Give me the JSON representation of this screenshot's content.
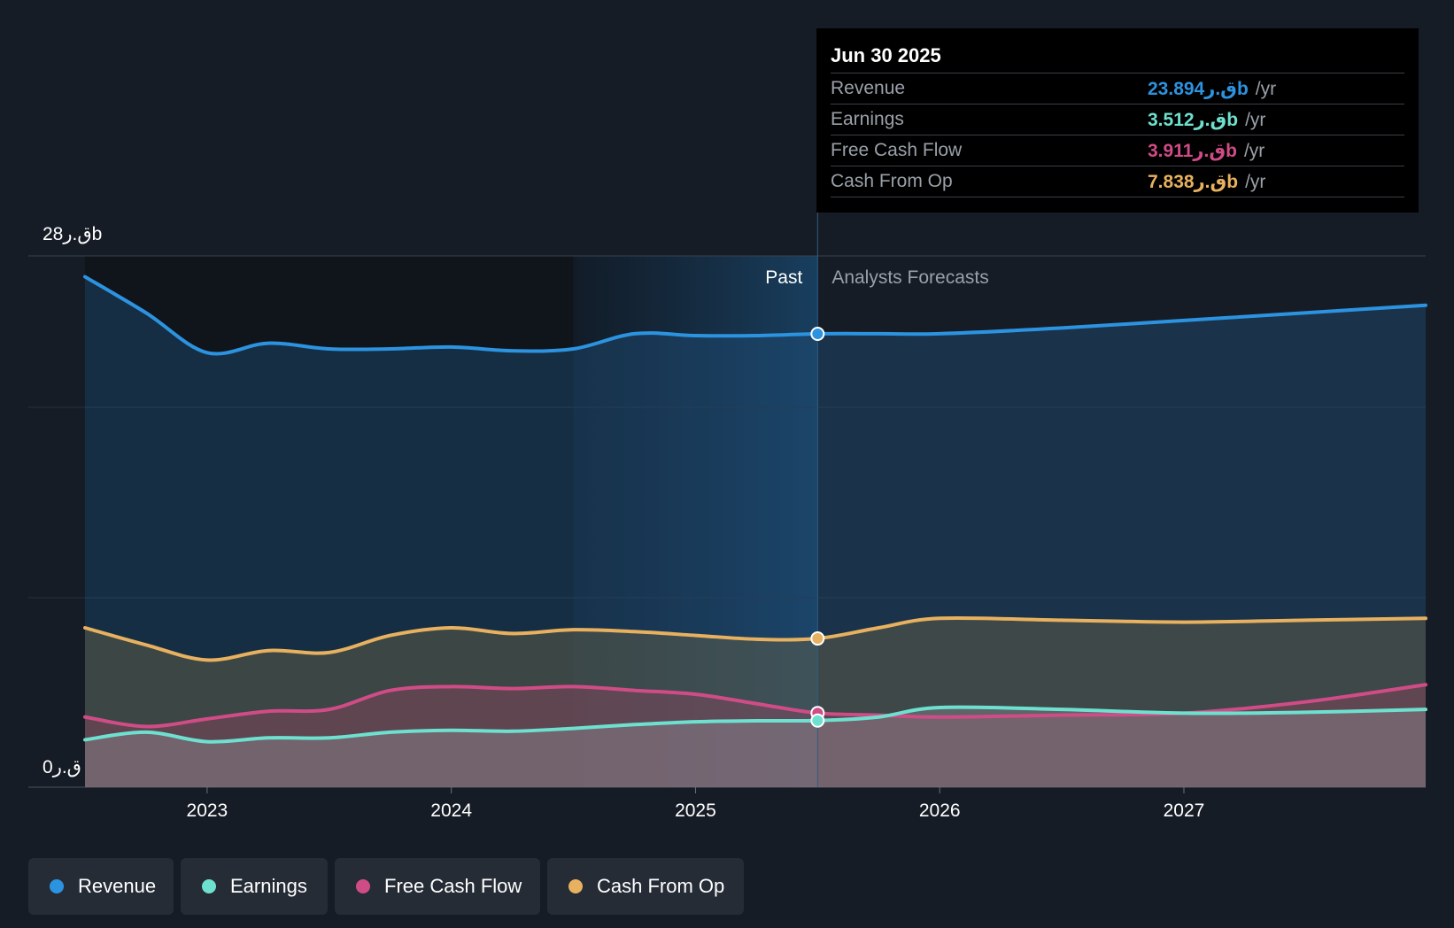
{
  "chart_data": {
    "type": "area",
    "title": "",
    "y_max_label": "28ق.رb",
    "y_min_label": "0ق.ر",
    "ylim": [
      0,
      28
    ],
    "xlim": [
      2022.5,
      2027.99
    ],
    "x_ticks": [
      {
        "value": 2023,
        "label": "2023"
      },
      {
        "value": 2024,
        "label": "2024"
      },
      {
        "value": 2025,
        "label": "2025"
      },
      {
        "value": 2026,
        "label": "2026"
      },
      {
        "value": 2027,
        "label": "2027"
      }
    ],
    "past_label": "Past",
    "forecast_label": "Analysts Forecasts",
    "past_end": 2025.5,
    "highlight_start": 2024.5,
    "series": [
      {
        "name": "Revenue",
        "color": "#2c93e0",
        "points": [
          [
            2022.5,
            26.9
          ],
          [
            2022.75,
            25
          ],
          [
            2023,
            22.9
          ],
          [
            2023.25,
            23.4
          ],
          [
            2023.5,
            23.1
          ],
          [
            2023.75,
            23.1
          ],
          [
            2024,
            23.2
          ],
          [
            2024.25,
            23
          ],
          [
            2024.5,
            23.1
          ],
          [
            2024.75,
            23.9
          ],
          [
            2025,
            23.8
          ],
          [
            2025.25,
            23.8
          ],
          [
            2025.5,
            23.894
          ],
          [
            2025.75,
            23.9
          ],
          [
            2026,
            23.9
          ],
          [
            2026.5,
            24.2
          ],
          [
            2027,
            24.6
          ],
          [
            2027.5,
            25
          ],
          [
            2027.99,
            25.4
          ]
        ]
      },
      {
        "name": "Cash From Op",
        "color": "#e7b15f",
        "points": [
          [
            2022.5,
            8.4
          ],
          [
            2022.75,
            7.5
          ],
          [
            2023,
            6.7
          ],
          [
            2023.25,
            7.2
          ],
          [
            2023.5,
            7.1
          ],
          [
            2023.75,
            8
          ],
          [
            2024,
            8.4
          ],
          [
            2024.25,
            8.1
          ],
          [
            2024.5,
            8.3
          ],
          [
            2024.75,
            8.2
          ],
          [
            2025,
            8
          ],
          [
            2025.25,
            7.8
          ],
          [
            2025.5,
            7.838
          ],
          [
            2025.75,
            8.4
          ],
          [
            2026,
            8.9
          ],
          [
            2026.5,
            8.8
          ],
          [
            2027,
            8.7
          ],
          [
            2027.5,
            8.8
          ],
          [
            2027.99,
            8.9
          ]
        ]
      },
      {
        "name": "Free Cash Flow",
        "color": "#d04c86",
        "points": [
          [
            2022.5,
            3.7
          ],
          [
            2022.75,
            3.2
          ],
          [
            2023,
            3.6
          ],
          [
            2023.25,
            4
          ],
          [
            2023.5,
            4.1
          ],
          [
            2023.75,
            5.1
          ],
          [
            2024,
            5.3
          ],
          [
            2024.25,
            5.2
          ],
          [
            2024.5,
            5.3
          ],
          [
            2024.75,
            5.1
          ],
          [
            2025,
            4.9
          ],
          [
            2025.25,
            4.4
          ],
          [
            2025.5,
            3.911
          ],
          [
            2025.75,
            3.8
          ],
          [
            2026,
            3.7
          ],
          [
            2026.5,
            3.8
          ],
          [
            2027,
            3.9
          ],
          [
            2027.5,
            4.5
          ],
          [
            2027.99,
            5.4
          ]
        ]
      },
      {
        "name": "Earnings",
        "color": "#6ee0cf",
        "points": [
          [
            2022.5,
            2.5
          ],
          [
            2022.75,
            2.9
          ],
          [
            2023,
            2.4
          ],
          [
            2023.25,
            2.6
          ],
          [
            2023.5,
            2.6
          ],
          [
            2023.75,
            2.9
          ],
          [
            2024,
            3
          ],
          [
            2024.25,
            2.95
          ],
          [
            2024.5,
            3.1
          ],
          [
            2024.75,
            3.3
          ],
          [
            2025,
            3.45
          ],
          [
            2025.25,
            3.5
          ],
          [
            2025.5,
            3.512
          ],
          [
            2025.75,
            3.7
          ],
          [
            2026,
            4.2
          ],
          [
            2026.5,
            4.1
          ],
          [
            2027,
            3.9
          ],
          [
            2027.5,
            3.95
          ],
          [
            2027.99,
            4.1
          ]
        ]
      }
    ]
  },
  "tooltip": {
    "date": "Jun 30 2025",
    "rows": [
      {
        "label": "Revenue",
        "value": "23.894ق.رb",
        "unit": "/yr",
        "color": "#2c93e0"
      },
      {
        "label": "Earnings",
        "value": "3.512ق.رb",
        "unit": "/yr",
        "color": "#6ee0cf"
      },
      {
        "label": "Free Cash Flow",
        "value": "3.911ق.رb",
        "unit": "/yr",
        "color": "#d04c86"
      },
      {
        "label": "Cash From Op",
        "value": "7.838ق.رb",
        "unit": "/yr",
        "color": "#e7b15f"
      }
    ]
  },
  "legend": [
    {
      "label": "Revenue",
      "color": "#2c93e0"
    },
    {
      "label": "Earnings",
      "color": "#6ee0cf"
    },
    {
      "label": "Free Cash Flow",
      "color": "#d04c86"
    },
    {
      "label": "Cash From Op",
      "color": "#e7b15f"
    }
  ]
}
